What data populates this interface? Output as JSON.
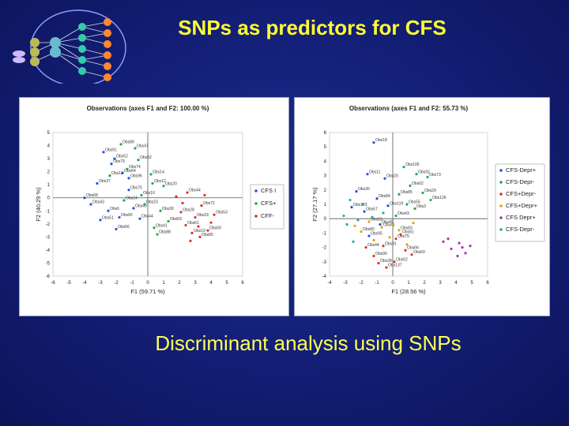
{
  "slide": {
    "title": "SNPs as predictors for CFS",
    "caption": "Discriminant analysis using SNPs"
  },
  "colors": {
    "title": "#ffff33",
    "caption": "#ffff55",
    "background": "#142079"
  },
  "logo": {
    "icon": "network-diagram-icon"
  },
  "chart_data": [
    {
      "type": "scatter",
      "title": "Observations (axes F1 and F2: 100.00 %)",
      "xlabel": "F1 (59.71 %)",
      "ylabel": "F2 (40.29 %)",
      "xlim": [
        -6,
        6
      ],
      "ylim": [
        -6,
        5
      ],
      "xticks": [
        -6,
        -5,
        -4,
        -3,
        -2,
        -1,
        0,
        1,
        2,
        3,
        4,
        5,
        6
      ],
      "yticks": [
        -6,
        -5,
        -4,
        -3,
        -2,
        -1,
        0,
        1,
        2,
        3,
        4,
        5
      ],
      "legend_position": "right",
      "series": [
        {
          "name": "CFS I",
          "color": "#2255dd",
          "points": [
            [
              -3.2,
              1.1
            ],
            [
              -2.8,
              3.5
            ],
            [
              -2.1,
              3.0
            ],
            [
              -2.3,
              2.6
            ],
            [
              -1.6,
              1.9
            ],
            [
              -1.2,
              1.5
            ],
            [
              -3.6,
              -0.5
            ],
            [
              -2.5,
              -1.0
            ],
            [
              -1.8,
              -1.5
            ],
            [
              -0.9,
              -0.8
            ],
            [
              -4.0,
              0.0
            ],
            [
              -3.0,
              -1.7
            ],
            [
              -2.0,
              -2.4
            ],
            [
              -1.2,
              0.6
            ],
            [
              -0.5,
              -1.6
            ]
          ]
        },
        {
          "name": "CFS+",
          "color": "#22aa44",
          "points": [
            [
              -1.7,
              4.1
            ],
            [
              -0.8,
              3.8
            ],
            [
              -1.3,
              2.2
            ],
            [
              -0.6,
              2.9
            ],
            [
              0.3,
              1.1
            ],
            [
              0.8,
              -1.0
            ],
            [
              1.3,
              -1.8
            ],
            [
              0.4,
              -2.3
            ],
            [
              -0.2,
              -0.5
            ],
            [
              -1.5,
              -0.2
            ],
            [
              0.2,
              1.8
            ],
            [
              -0.4,
              0.2
            ],
            [
              1.0,
              0.9
            ],
            [
              0.6,
              -2.8
            ],
            [
              -2.4,
              1.7
            ]
          ]
        },
        {
          "name": "CFF-",
          "color": "#dd3322",
          "points": [
            [
              2.5,
              0.4
            ],
            [
              3.4,
              -0.6
            ],
            [
              3.0,
              -1.5
            ],
            [
              2.4,
              -2.1
            ],
            [
              3.8,
              -2.5
            ],
            [
              3.3,
              -3.0
            ],
            [
              2.1,
              -1.1
            ],
            [
              4.2,
              -1.3
            ],
            [
              2.8,
              -2.7
            ],
            [
              1.8,
              0.1
            ],
            [
              3.6,
              0.2
            ],
            [
              2.7,
              -3.3
            ],
            [
              4.0,
              -1.9
            ],
            [
              2.2,
              -0.4
            ],
            [
              3.2,
              -2.2
            ]
          ]
        }
      ],
      "annotations": [
        "Obs37",
        "Obs91",
        "Obs52",
        "Obs79",
        "Obs64",
        "Obs96",
        "Obs43",
        "Obs6",
        "Obs6F",
        "Obs40",
        "Obs68",
        "Obs51",
        "Obs56",
        "Obs75",
        "Obs44",
        "Obs89",
        "Obs47",
        "Obs74",
        "Obs32",
        "Obs12",
        "Obs30",
        "Obs59",
        "Obs41",
        "Obs23",
        "Obs24",
        "Obs14",
        "Obs10",
        "Obs20",
        "Obs88",
        "Obs13",
        "Obs44",
        "Obs72",
        "Obs33",
        "Obs61",
        "Obs69",
        "Obs85",
        "Obs28",
        "Obs53",
        "Obs19"
      ]
    },
    {
      "type": "scatter",
      "title": "Observations (axes F1 and F2: 55.73 %)",
      "xlabel": "F1 (28.56 %)",
      "ylabel": "F2 (27.17 %)",
      "xlim": [
        -4,
        6
      ],
      "ylim": [
        -4,
        6
      ],
      "xticks": [
        -4,
        -3,
        -2,
        -1,
        0,
        1,
        2,
        3,
        4,
        5,
        6
      ],
      "yticks": [
        -4,
        -3,
        -2,
        -1,
        0,
        1,
        2,
        3,
        4,
        5,
        6
      ],
      "legend_position": "right",
      "series": [
        {
          "name": "CFS-Depr+",
          "color": "#2255dd",
          "points": [
            [
              -1.2,
              5.3
            ],
            [
              -1.6,
              3.1
            ],
            [
              -0.5,
              2.8
            ],
            [
              -2.3,
              1.9
            ],
            [
              -1.0,
              1.4
            ],
            [
              -0.3,
              0.9
            ],
            [
              -1.8,
              0.5
            ],
            [
              -2.6,
              0.8
            ],
            [
              -0.8,
              -0.4
            ],
            [
              -1.5,
              -1.2
            ]
          ]
        },
        {
          "name": "CFS-Depr-",
          "color": "#22aa44",
          "points": [
            [
              0.7,
              3.6
            ],
            [
              1.5,
              3.1
            ],
            [
              2.2,
              2.9
            ],
            [
              1.1,
              2.3
            ],
            [
              0.4,
              1.7
            ],
            [
              1.9,
              1.8
            ],
            [
              0.9,
              1.0
            ],
            [
              1.4,
              0.7
            ],
            [
              0.2,
              0.2
            ],
            [
              2.4,
              1.3
            ]
          ]
        },
        {
          "name": "CFS+Depr-",
          "color": "#dd3322",
          "points": [
            [
              0.2,
              -1.4
            ],
            [
              -0.6,
              -1.9
            ],
            [
              0.8,
              -2.2
            ],
            [
              -1.2,
              -2.6
            ],
            [
              0.1,
              -3.0
            ],
            [
              -0.4,
              -3.4
            ],
            [
              1.2,
              -2.5
            ],
            [
              -1.7,
              -2.0
            ],
            [
              0.5,
              -1.1
            ],
            [
              -0.9,
              -3.1
            ]
          ]
        },
        {
          "name": "CFS+Depr+",
          "color": "#ddaa00",
          "points": [
            [
              -1.5,
              -0.2
            ],
            [
              -0.7,
              -0.6
            ],
            [
              0.4,
              -0.8
            ],
            [
              -2.0,
              -0.9
            ],
            [
              1.3,
              -0.3
            ],
            [
              -0.2,
              -1.3
            ],
            [
              0.9,
              -1.8
            ],
            [
              -1.2,
              -1.5
            ],
            [
              -2.4,
              -0.5
            ],
            [
              0.0,
              -0.4
            ]
          ]
        },
        {
          "name": "CFS Depr+",
          "color": "#aa33aa",
          "points": [
            [
              3.2,
              -1.6
            ],
            [
              3.7,
              -2.1
            ],
            [
              4.2,
              -1.7
            ],
            [
              4.6,
              -2.4
            ],
            [
              4.9,
              -1.9
            ],
            [
              4.1,
              -2.6
            ],
            [
              3.5,
              -1.4
            ],
            [
              4.4,
              -2.0
            ]
          ]
        },
        {
          "name": "CFS-Depr-",
          "color": "#22aaaa",
          "points": [
            [
              -2.7,
              1.3
            ],
            [
              -3.1,
              0.2
            ],
            [
              -2.2,
              -0.1
            ],
            [
              -1.9,
              1.0
            ],
            [
              -2.9,
              -0.4
            ],
            [
              -1.3,
              0.1
            ],
            [
              -2.5,
              -1.6
            ],
            [
              -0.6,
              0.4
            ]
          ]
        }
      ],
      "annotations": [
        "Obs18",
        "Obs11",
        "Obs20",
        "Obs30",
        "Obs84",
        "Obs119",
        "Obs67",
        "Obs123",
        "Obs49",
        "Obs95",
        "Obs105",
        "Obs92",
        "Obs73",
        "Obs62",
        "Obs85",
        "Obs29",
        "Obs55",
        "Obs3",
        "Obs43",
        "Obs126",
        "Obs75",
        "Obs81",
        "Obs66",
        "Obs90",
        "Obs52",
        "Obs137",
        "Obs60",
        "Obs44",
        "Obs61",
        "Obs28",
        "Obs16",
        "Obs41",
        "Obs83",
        "Obs80"
      ]
    }
  ]
}
